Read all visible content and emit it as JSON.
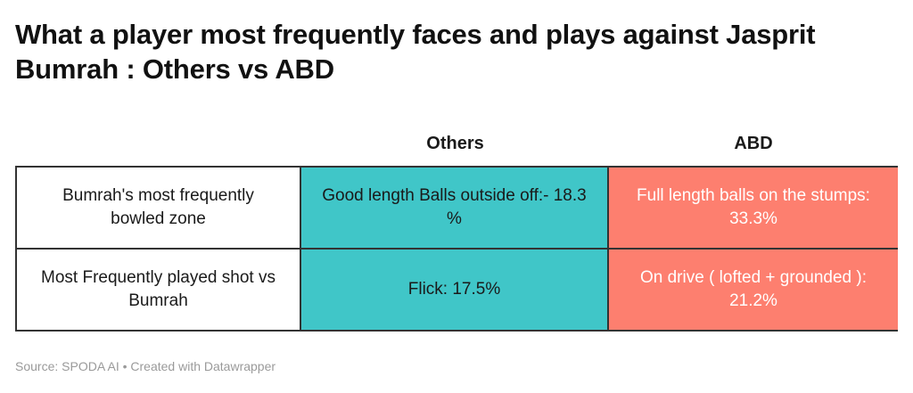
{
  "title": "What a player most frequently faces and plays against Jasprit Bumrah : Others vs ABD",
  "source": "Source: SPODA AI • Created with Datawrapper",
  "colors": {
    "others_fill": "#40C6C8",
    "abd_fill": "#FD7F6F"
  },
  "chart_data": {
    "type": "table",
    "columns": [
      "",
      "Others",
      "ABD"
    ],
    "rows": [
      {
        "label": "Bumrah's most frequently bowled zone",
        "others": "Good length Balls outside off:- 18.3 %",
        "abd": "Full length balls on the stumps: 33.3%"
      },
      {
        "label": "Most Frequently played shot vs Bumrah",
        "others": "Flick: 17.5%",
        "abd": "On drive ( lofted + grounded ): 21.2%"
      }
    ]
  }
}
